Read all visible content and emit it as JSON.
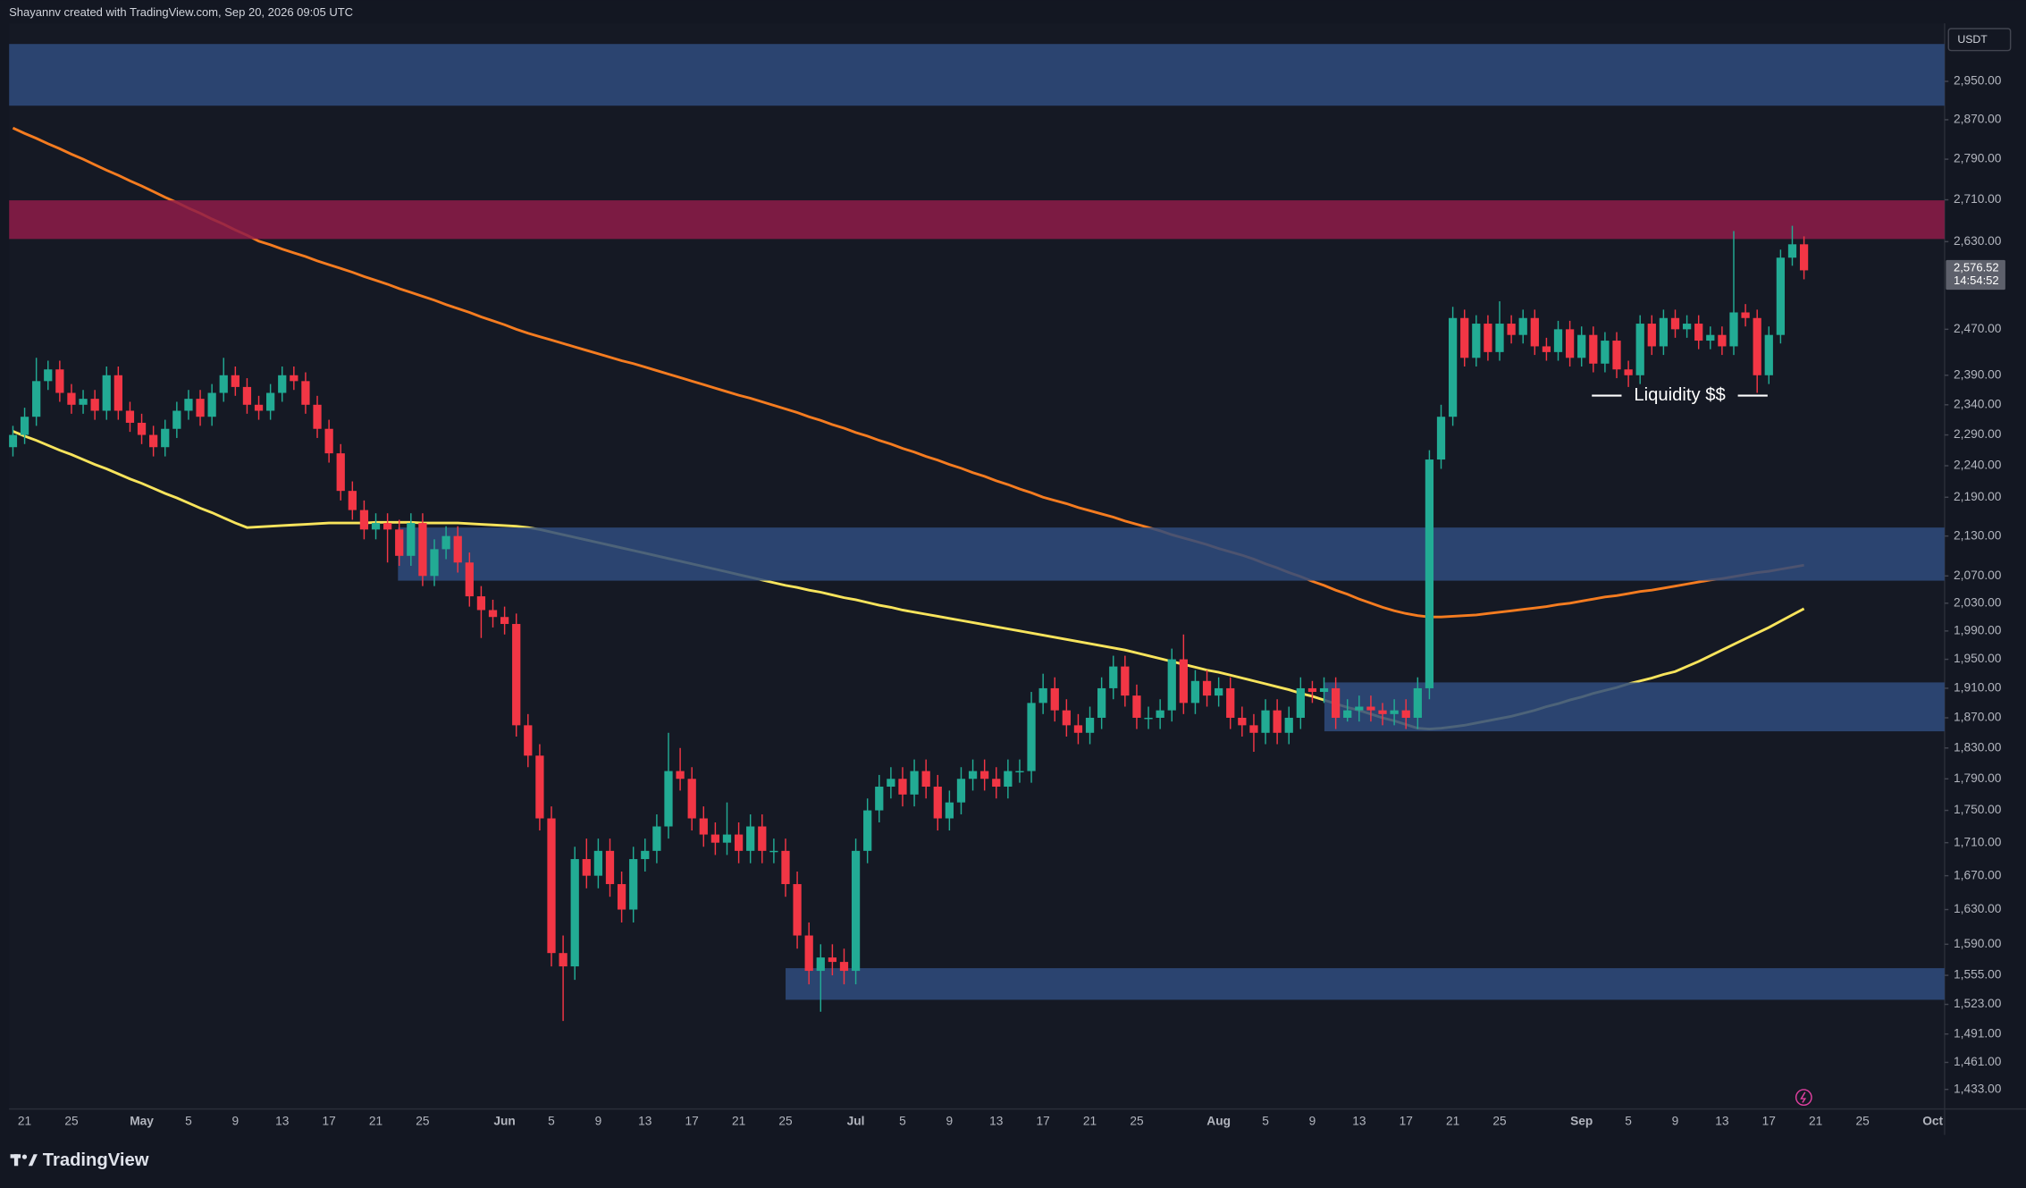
{
  "header": "Shayannv created with TradingView.com, Sep 20, 2026 09:05 UTC",
  "brand": "TradingView",
  "chart_data": {
    "type": "candlestick",
    "currency": "USDT",
    "log_scale": true,
    "grid": false,
    "up_color": "#22ab94",
    "down_color": "#f23645",
    "price_label": "2,576.52",
    "countdown": "14:54:52",
    "annotation": "Liquidity $$",
    "ylim": [
      1413,
      3075
    ],
    "yticks": [
      {
        "value": 2950,
        "label": "2,950.00"
      },
      {
        "value": 2870,
        "label": "2,870.00"
      },
      {
        "value": 2790,
        "label": "2,790.00"
      },
      {
        "value": 2710,
        "label": "2,710.00"
      },
      {
        "value": 2630,
        "label": "2,630.00"
      },
      {
        "value": 2470,
        "label": "2,470.00"
      },
      {
        "value": 2390,
        "label": "2,390.00"
      },
      {
        "value": 2340,
        "label": "2,340.00"
      },
      {
        "value": 2290,
        "label": "2,290.00"
      },
      {
        "value": 2240,
        "label": "2,240.00"
      },
      {
        "value": 2190,
        "label": "2,190.00"
      },
      {
        "value": 2130,
        "label": "2,130.00"
      },
      {
        "value": 2070,
        "label": "2,070.00"
      },
      {
        "value": 2030,
        "label": "2,030.00"
      },
      {
        "value": 1990,
        "label": "1,990.00"
      },
      {
        "value": 1950,
        "label": "1,950.00"
      },
      {
        "value": 1910,
        "label": "1,910.00"
      },
      {
        "value": 1870,
        "label": "1,870.00"
      },
      {
        "value": 1830,
        "label": "1,830.00"
      },
      {
        "value": 1790,
        "label": "1,790.00"
      },
      {
        "value": 1750,
        "label": "1,750.00"
      },
      {
        "value": 1710,
        "label": "1,710.00"
      },
      {
        "value": 1670,
        "label": "1,670.00"
      },
      {
        "value": 1630,
        "label": "1,630.00"
      },
      {
        "value": 1590,
        "label": "1,590.00"
      },
      {
        "value": 1555,
        "label": "1,555.00"
      },
      {
        "value": 1523,
        "label": "1,523.00"
      },
      {
        "value": 1491,
        "label": "1,491.00"
      },
      {
        "value": 1461,
        "label": "1,461.00"
      },
      {
        "value": 1433,
        "label": "1,433.00"
      }
    ],
    "categories": [
      null,
      "21",
      null,
      null,
      null,
      "25",
      null,
      null,
      null,
      null,
      null,
      "May",
      null,
      null,
      null,
      "5",
      null,
      null,
      null,
      "9",
      null,
      null,
      null,
      "13",
      null,
      null,
      null,
      "17",
      null,
      null,
      null,
      "21",
      null,
      null,
      null,
      "25",
      null,
      null,
      null,
      null,
      null,
      null,
      "Jun",
      null,
      null,
      null,
      "5",
      null,
      null,
      null,
      "9",
      null,
      null,
      null,
      "13",
      null,
      null,
      null,
      "17",
      null,
      null,
      null,
      "21",
      null,
      null,
      null,
      "25",
      null,
      null,
      null,
      null,
      null,
      "Jul",
      null,
      null,
      null,
      "5",
      null,
      null,
      null,
      "9",
      null,
      null,
      null,
      "13",
      null,
      null,
      null,
      "17",
      null,
      null,
      null,
      "21",
      null,
      null,
      null,
      "25",
      null,
      null,
      null,
      null,
      null,
      null,
      "Aug",
      null,
      null,
      null,
      "5",
      null,
      null,
      null,
      "9",
      null,
      null,
      null,
      "13",
      null,
      null,
      null,
      "17",
      null,
      null,
      null,
      "21",
      null,
      null,
      null,
      "25",
      null,
      null,
      null,
      null,
      null,
      null,
      "Sep",
      null,
      null,
      null,
      "5",
      null,
      null,
      null,
      "9",
      null,
      null,
      null,
      "13",
      null,
      null,
      null,
      "17",
      null,
      null,
      null,
      "21",
      null,
      null,
      null,
      "25",
      null,
      null,
      null,
      null,
      null,
      "Oct"
    ],
    "open": [
      2270,
      2290,
      2320,
      2380,
      2400,
      2360,
      2340,
      2350,
      2330,
      2390,
      2330,
      2310,
      2290,
      2270,
      2300,
      2330,
      2350,
      2320,
      2360,
      2390,
      2370,
      2340,
      2330,
      2360,
      2390,
      2380,
      2340,
      2300,
      2260,
      2200,
      2170,
      2140,
      2150,
      2140,
      2100,
      2150,
      2070,
      2110,
      2130,
      2090,
      2040,
      2020,
      2010,
      2000,
      1860,
      1820,
      1740,
      1580,
      1565,
      1690,
      1670,
      1700,
      1660,
      1630,
      1690,
      1700,
      1730,
      1800,
      1790,
      1740,
      1720,
      1710,
      1720,
      1700,
      1730,
      1700,
      1700,
      1660,
      1600,
      1560,
      1575,
      1570,
      1560,
      1700,
      1750,
      1780,
      1790,
      1770,
      1800,
      1780,
      1740,
      1760,
      1790,
      1800,
      1790,
      1780,
      1800,
      1800,
      1890,
      1910,
      1880,
      1860,
      1850,
      1870,
      1910,
      1940,
      1900,
      1870,
      1870,
      1880,
      1950,
      1890,
      1920,
      1900,
      1910,
      1870,
      1860,
      1850,
      1880,
      1850,
      1870,
      1910,
      1905,
      1910,
      1870,
      1880,
      1885,
      1880,
      1875,
      1880,
      1870,
      1910,
      2250,
      2320,
      2490,
      2420,
      2480,
      2430,
      2480,
      2460,
      2490,
      2440,
      2430,
      2470,
      2420,
      2460,
      2410,
      2450,
      2400,
      2390,
      2480,
      2440,
      2490,
      2470,
      2480,
      2450,
      2460,
      2440,
      2500,
      2490,
      2390,
      2460,
      2600,
      2625,
      null,
      null,
      null,
      null,
      null,
      null,
      null,
      null,
      null,
      null,
      null
    ],
    "high": [
      2305,
      2335,
      2420,
      2415,
      2415,
      2375,
      2365,
      2365,
      2405,
      2405,
      2345,
      2325,
      2305,
      2315,
      2345,
      2365,
      2365,
      2375,
      2420,
      2405,
      2385,
      2355,
      2375,
      2405,
      2405,
      2395,
      2355,
      2315,
      2275,
      2215,
      2185,
      2165,
      2165,
      2155,
      2165,
      2165,
      2125,
      2145,
      2145,
      2105,
      2055,
      2035,
      2025,
      2015,
      1875,
      1835,
      1755,
      1600,
      1705,
      1715,
      1715,
      1715,
      1675,
      1705,
      1715,
      1745,
      1850,
      1830,
      1805,
      1755,
      1735,
      1760,
      1735,
      1745,
      1745,
      1715,
      1715,
      1675,
      1615,
      1590,
      1590,
      1585,
      1715,
      1765,
      1795,
      1805,
      1805,
      1815,
      1815,
      1795,
      1775,
      1805,
      1815,
      1815,
      1805,
      1815,
      1815,
      1905,
      1930,
      1925,
      1895,
      1875,
      1885,
      1925,
      1955,
      1955,
      1915,
      1885,
      1895,
      1965,
      1985,
      1935,
      1935,
      1925,
      1925,
      1885,
      1875,
      1895,
      1895,
      1885,
      1925,
      1920,
      1925,
      1925,
      1895,
      1900,
      1900,
      1890,
      1895,
      1895,
      1925,
      2265,
      2340,
      2510,
      2505,
      2495,
      2495,
      2520,
      2495,
      2505,
      2505,
      2455,
      2485,
      2485,
      2475,
      2475,
      2465,
      2465,
      2415,
      2495,
      2495,
      2505,
      2505,
      2495,
      2495,
      2475,
      2475,
      2650,
      2515,
      2505,
      2475,
      2615,
      2660,
      2640,
      null,
      null,
      null,
      null,
      null,
      null,
      null,
      null,
      null,
      null,
      null
    ],
    "low": [
      2255,
      2275,
      2305,
      2365,
      2345,
      2325,
      2325,
      2315,
      2315,
      2315,
      2295,
      2275,
      2255,
      2255,
      2285,
      2315,
      2305,
      2305,
      2345,
      2355,
      2325,
      2315,
      2315,
      2345,
      2365,
      2325,
      2285,
      2245,
      2185,
      2155,
      2125,
      2125,
      2090,
      2085,
      2085,
      2055,
      2055,
      2095,
      2075,
      2025,
      1980,
      1995,
      1985,
      1845,
      1805,
      1725,
      1565,
      1505,
      1550,
      1655,
      1655,
      1645,
      1615,
      1615,
      1675,
      1685,
      1715,
      1775,
      1725,
      1705,
      1695,
      1695,
      1685,
      1685,
      1685,
      1685,
      1645,
      1585,
      1545,
      1515,
      1555,
      1545,
      1545,
      1685,
      1735,
      1765,
      1755,
      1755,
      1765,
      1725,
      1725,
      1745,
      1775,
      1775,
      1765,
      1765,
      1785,
      1785,
      1875,
      1865,
      1845,
      1835,
      1835,
      1855,
      1895,
      1885,
      1855,
      1855,
      1855,
      1865,
      1875,
      1875,
      1885,
      1885,
      1855,
      1845,
      1825,
      1835,
      1835,
      1835,
      1855,
      1890,
      1890,
      1855,
      1865,
      1865,
      1865,
      1860,
      1860,
      1855,
      1855,
      1895,
      2235,
      2305,
      2405,
      2405,
      2415,
      2415,
      2445,
      2445,
      2425,
      2415,
      2415,
      2405,
      2405,
      2395,
      2395,
      2385,
      2370,
      2375,
      2425,
      2425,
      2455,
      2455,
      2435,
      2435,
      2425,
      2425,
      2475,
      2360,
      2375,
      2445,
      2585,
      2560,
      null,
      null,
      null,
      null,
      null,
      null,
      null,
      null,
      null,
      null,
      null
    ],
    "close": [
      2290,
      2320,
      2380,
      2400,
      2360,
      2340,
      2350,
      2330,
      2390,
      2330,
      2310,
      2290,
      2270,
      2300,
      2330,
      2350,
      2320,
      2360,
      2390,
      2370,
      2340,
      2330,
      2360,
      2390,
      2380,
      2340,
      2300,
      2260,
      2200,
      2170,
      2140,
      2150,
      2140,
      2100,
      2150,
      2070,
      2110,
      2130,
      2090,
      2040,
      2020,
      2010,
      2000,
      1860,
      1820,
      1740,
      1580,
      1565,
      1690,
      1670,
      1700,
      1660,
      1630,
      1690,
      1700,
      1730,
      1800,
      1790,
      1740,
      1720,
      1710,
      1720,
      1700,
      1730,
      1700,
      1700,
      1660,
      1600,
      1560,
      1575,
      1570,
      1560,
      1700,
      1750,
      1780,
      1790,
      1770,
      1800,
      1780,
      1740,
      1760,
      1790,
      1800,
      1790,
      1780,
      1800,
      1800,
      1890,
      1910,
      1880,
      1860,
      1850,
      1870,
      1910,
      1940,
      1900,
      1870,
      1870,
      1880,
      1950,
      1890,
      1920,
      1900,
      1910,
      1870,
      1860,
      1850,
      1880,
      1850,
      1870,
      1910,
      1905,
      1910,
      1870,
      1880,
      1885,
      1880,
      1875,
      1880,
      1870,
      1910,
      2250,
      2320,
      2490,
      2420,
      2480,
      2430,
      2480,
      2460,
      2490,
      2440,
      2430,
      2470,
      2420,
      2460,
      2410,
      2450,
      2400,
      2390,
      2480,
      2440,
      2490,
      2470,
      2480,
      2450,
      2460,
      2440,
      2500,
      2490,
      2390,
      2460,
      2600,
      2625,
      2576.52,
      null,
      null,
      null,
      null,
      null,
      null,
      null,
      null,
      null,
      null,
      null
    ],
    "lines": [
      {
        "color": "#f57c20",
        "values": [
          2853,
          2842,
          2832,
          2821,
          2811,
          2800,
          2790,
          2779,
          2768,
          2758,
          2747,
          2737,
          2726,
          2715,
          2705,
          2694,
          2684,
          2673,
          2663,
          2652,
          2642,
          2631,
          2624,
          2616,
          2609,
          2602,
          2594,
          2587,
          2580,
          2573,
          2565,
          2558,
          2551,
          2543,
          2536,
          2529,
          2522,
          2514,
          2507,
          2500,
          2492,
          2485,
          2478,
          2470,
          2463,
          2457,
          2451,
          2445,
          2439,
          2433,
          2427,
          2421,
          2415,
          2410,
          2404,
          2398,
          2392,
          2386,
          2380,
          2374,
          2368,
          2362,
          2356,
          2351,
          2345,
          2339,
          2333,
          2327,
          2320,
          2314,
          2307,
          2301,
          2294,
          2288,
          2281,
          2275,
          2268,
          2262,
          2255,
          2249,
          2242,
          2236,
          2229,
          2223,
          2216,
          2210,
          2203,
          2197,
          2190,
          2185,
          2180,
          2174,
          2169,
          2164,
          2159,
          2153,
          2148,
          2143,
          2138,
          2132,
          2127,
          2122,
          2117,
          2111,
          2106,
          2101,
          2095,
          2088,
          2082,
          2075,
          2069,
          2062,
          2056,
          2049,
          2043,
          2036,
          2030,
          2024,
          2019,
          2015,
          2012,
          2010,
          2010,
          2011,
          2012,
          2013,
          2015,
          2017,
          2019,
          2021,
          2023,
          2025,
          2028,
          2030,
          2033,
          2036,
          2039,
          2041,
          2044,
          2047,
          2049,
          2052,
          2055,
          2058,
          2061,
          2064,
          2066,
          2069,
          2072,
          2075,
          2077,
          2080,
          2083,
          2086,
          null,
          null,
          null,
          null,
          null,
          null,
          null,
          null,
          null,
          null,
          null
        ]
      },
      {
        "color": "#f8e45c",
        "values": [
          2296,
          2288,
          2281,
          2273,
          2265,
          2258,
          2250,
          2242,
          2235,
          2227,
          2219,
          2212,
          2204,
          2196,
          2189,
          2181,
          2173,
          2166,
          2158,
          2150,
          2143,
          2144,
          2145,
          2146,
          2147,
          2148,
          2149,
          2150,
          2150,
          2150,
          2150,
          2151,
          2151,
          2151,
          2151,
          2150,
          2150,
          2150,
          2150,
          2149,
          2148,
          2147,
          2146,
          2145,
          2143,
          2140,
          2136,
          2132,
          2128,
          2124,
          2120,
          2116,
          2112,
          2108,
          2104,
          2100,
          2096,
          2092,
          2088,
          2084,
          2080,
          2076,
          2072,
          2068,
          2064,
          2060,
          2056,
          2053,
          2049,
          2046,
          2042,
          2038,
          2035,
          2031,
          2027,
          2024,
          2020,
          2017,
          2014,
          2011,
          2008,
          2005,
          2002,
          1999,
          1996,
          1993,
          1990,
          1987,
          1984,
          1981,
          1978,
          1975,
          1972,
          1969,
          1966,
          1963,
          1959,
          1955,
          1951,
          1947,
          1943,
          1939,
          1935,
          1932,
          1928,
          1924,
          1920,
          1916,
          1912,
          1908,
          1903,
          1899,
          1894,
          1889,
          1884,
          1880,
          1875,
          1870,
          1866,
          1861,
          1856,
          1855,
          1856,
          1858,
          1860,
          1863,
          1866,
          1869,
          1872,
          1876,
          1880,
          1885,
          1889,
          1894,
          1898,
          1903,
          1907,
          1911,
          1916,
          1920,
          1924,
          1929,
          1933,
          1940,
          1947,
          1955,
          1963,
          1971,
          1979,
          1987,
          1995,
          2004,
          2013,
          2022,
          null,
          null,
          null,
          null,
          null,
          null,
          null,
          null,
          null,
          null,
          null
        ]
      }
    ],
    "zones": [
      {
        "color": "#2f4c7e",
        "low": 2899,
        "high": 3030
      },
      {
        "color": "#8e1c49",
        "low": 2635,
        "high": 2709
      },
      {
        "color": "#2f4c7e",
        "low": 2063,
        "high": 2143
      },
      {
        "color": "#2f4c7e",
        "low": 1852,
        "high": 1918
      },
      {
        "color": "#2f4c7e",
        "low": 1528,
        "high": 1563
      }
    ]
  }
}
